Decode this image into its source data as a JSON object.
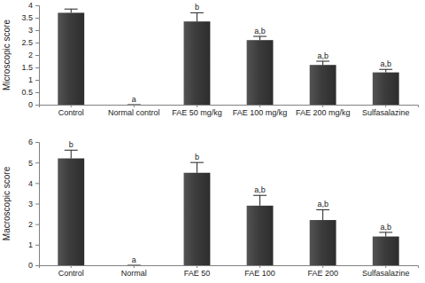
{
  "chart_data": [
    {
      "type": "bar",
      "y_label": "Microscopic score",
      "categories": [
        "Control",
        "Normal control",
        "FAE 50 mg/kg",
        "FAE 100 mg/kg",
        "FAE 200 mg/kg",
        "Sulfasalazine"
      ],
      "values": [
        3.7,
        0,
        3.35,
        2.6,
        1.6,
        1.3
      ],
      "errors": [
        0.15,
        0,
        0.35,
        0.15,
        0.15,
        0.12
      ],
      "annotations": [
        null,
        "a",
        "b",
        "a,b",
        "a,b",
        "a,b"
      ],
      "color": "#3c3c3c",
      "ylim": [
        0,
        4
      ],
      "yticks": [
        0,
        0.5,
        1,
        1.5,
        2,
        2.5,
        3,
        3.5,
        4
      ],
      "grid": false
    },
    {
      "type": "bar",
      "y_label": "Macroscopic score",
      "categories": [
        "Control",
        "Normal",
        "FAE 50",
        "FAE 100",
        "FAE 200",
        "Sulfasalazine"
      ],
      "values": [
        5.2,
        0,
        4.5,
        2.9,
        2.2,
        1.4
      ],
      "errors": [
        0.4,
        0,
        0.5,
        0.5,
        0.5,
        0.2
      ],
      "annotations": [
        "b",
        "a",
        "b",
        "a,b",
        "a,b",
        "a,b"
      ],
      "color": "#3c3c3c",
      "ylim": [
        0,
        6
      ],
      "yticks": [
        0,
        1,
        2,
        3,
        4,
        5,
        6
      ],
      "grid": false
    }
  ]
}
